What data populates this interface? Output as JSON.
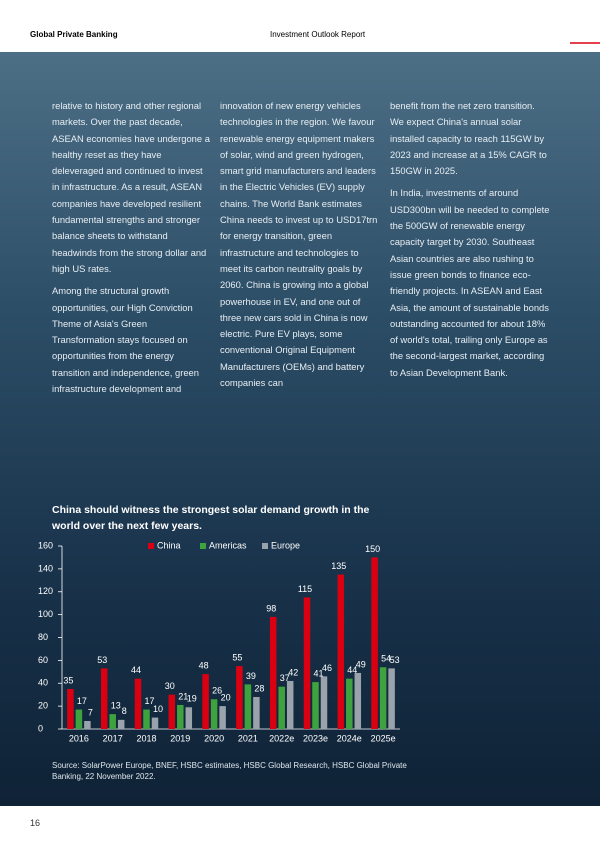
{
  "header": {
    "left": "Global Private Banking",
    "right": "Investment Outlook Report"
  },
  "columns": [
    [
      "relative to history and other regional markets. Over the past decade, ASEAN economies have undergone a healthy reset as they have deleveraged and continued to invest in infrastructure. As a result, ASEAN companies have developed resilient fundamental strengths and stronger balance sheets to withstand headwinds from the strong dollar and high US rates.",
      "Among the structural growth opportunities, our High Conviction Theme of Asia's Green Transformation stays focused on opportunities from the energy transition and independence, green infrastructure development and"
    ],
    [
      "innovation of new energy vehicles technologies in the region. We favour renewable energy equipment makers of solar, wind and green hydrogen, smart grid manufacturers and leaders in the Electric Vehicles (EV) supply chains. The World Bank estimates China needs to invest up to USD17trn for energy transition, green infrastructure and technologies to meet its carbon neutrality goals by 2060. China is growing into a global powerhouse in EV, and one out of three new cars sold in China is now electric. Pure EV plays, some conventional Original Equipment Manufacturers (OEMs) and battery companies can"
    ],
    [
      "benefit from the net zero transition. We expect China's annual solar installed capacity to reach 115GW by 2023 and increase at a 15% CAGR to 150GW in 2025.",
      "In India, investments of around USD300bn will be needed to complete the 500GW of renewable energy capacity target by 2030. Southeast Asian countries are also rushing to issue green bonds to finance eco-friendly projects. In ASEAN and East Asia, the amount of sustainable bonds outstanding accounted for about 18% of world's total, trailing only Europe as the second-largest market, according to Asian Development Bank."
    ]
  ],
  "chart_data": {
    "type": "bar",
    "title": "China should witness the strongest solar demand growth in the world over the next few years.",
    "categories": [
      "2016",
      "2017",
      "2018",
      "2019",
      "2020",
      "2021",
      "2022e",
      "2023e",
      "2024e",
      "2025e"
    ],
    "series": [
      {
        "name": "China",
        "color": "#db0011",
        "values": [
          35,
          53,
          44,
          30,
          48,
          55,
          98,
          115,
          135,
          150
        ]
      },
      {
        "name": "Americas",
        "color": "#3ea33e",
        "values": [
          17,
          13,
          17,
          21,
          26,
          39,
          37,
          41,
          44,
          54
        ]
      },
      {
        "name": "Europe",
        "color": "#9aa3ab",
        "values": [
          7,
          8,
          10,
          19,
          20,
          28,
          42,
          46,
          49,
          53
        ]
      }
    ],
    "ylim": [
      0,
      160
    ],
    "yticks": [
      0,
      20,
      40,
      60,
      80,
      100,
      120,
      140,
      160
    ],
    "legend": "top"
  },
  "source": "Source: SolarPower Europe, BNEF, HSBC estimates, HSBC Global Research, HSBC Global Private Banking, 22 November 2022.",
  "page_number": "16"
}
